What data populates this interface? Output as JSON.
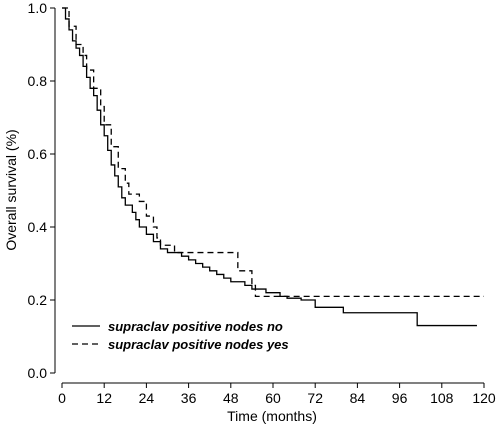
{
  "chart_data": {
    "type": "line",
    "step": true,
    "xlabel": "Time (months)",
    "ylabel": "Overall survival (%)",
    "xlim": [
      0,
      120
    ],
    "xticks": [
      0,
      12,
      24,
      36,
      48,
      60,
      72,
      84,
      96,
      108,
      120
    ],
    "ylim": [
      0,
      1
    ],
    "yticks": [
      {
        "value": 0,
        "label": "0.0"
      },
      0.2,
      0.4,
      0.6,
      0.8,
      {
        "value": 1,
        "label": "1.0"
      }
    ],
    "legend": "lower left",
    "series": [
      {
        "name": "supraclav positive nodes no",
        "color": "#000000",
        "dash": "solid",
        "x": [
          0,
          1,
          2,
          3,
          4,
          5,
          6,
          7,
          8,
          9,
          10,
          11,
          12,
          13,
          14,
          15,
          16,
          17,
          18,
          20,
          21,
          22,
          24,
          26,
          28,
          30,
          34,
          36,
          38,
          40,
          42,
          44,
          46,
          48,
          52,
          54,
          58,
          62,
          64,
          68,
          72,
          80,
          101,
          118
        ],
        "values": [
          1.0,
          0.97,
          0.94,
          0.91,
          0.89,
          0.87,
          0.84,
          0.81,
          0.78,
          0.76,
          0.72,
          0.68,
          0.65,
          0.61,
          0.57,
          0.54,
          0.51,
          0.48,
          0.46,
          0.44,
          0.42,
          0.4,
          0.38,
          0.36,
          0.34,
          0.33,
          0.32,
          0.31,
          0.3,
          0.29,
          0.28,
          0.27,
          0.26,
          0.25,
          0.24,
          0.23,
          0.22,
          0.21,
          0.205,
          0.2,
          0.18,
          0.165,
          0.13,
          0.13
        ]
      },
      {
        "name": "supraclav positive nodes yes",
        "color": "#000000",
        "dash": "dashed",
        "x": [
          0,
          2,
          4,
          6,
          7,
          9,
          11,
          12,
          14,
          16,
          18,
          19,
          22,
          24,
          26,
          27,
          28,
          32,
          50,
          54,
          55,
          120
        ],
        "values": [
          1.0,
          0.95,
          0.9,
          0.87,
          0.83,
          0.78,
          0.73,
          0.68,
          0.62,
          0.56,
          0.52,
          0.49,
          0.47,
          0.43,
          0.4,
          0.37,
          0.35,
          0.33,
          0.28,
          0.24,
          0.21,
          0.21
        ]
      }
    ]
  }
}
